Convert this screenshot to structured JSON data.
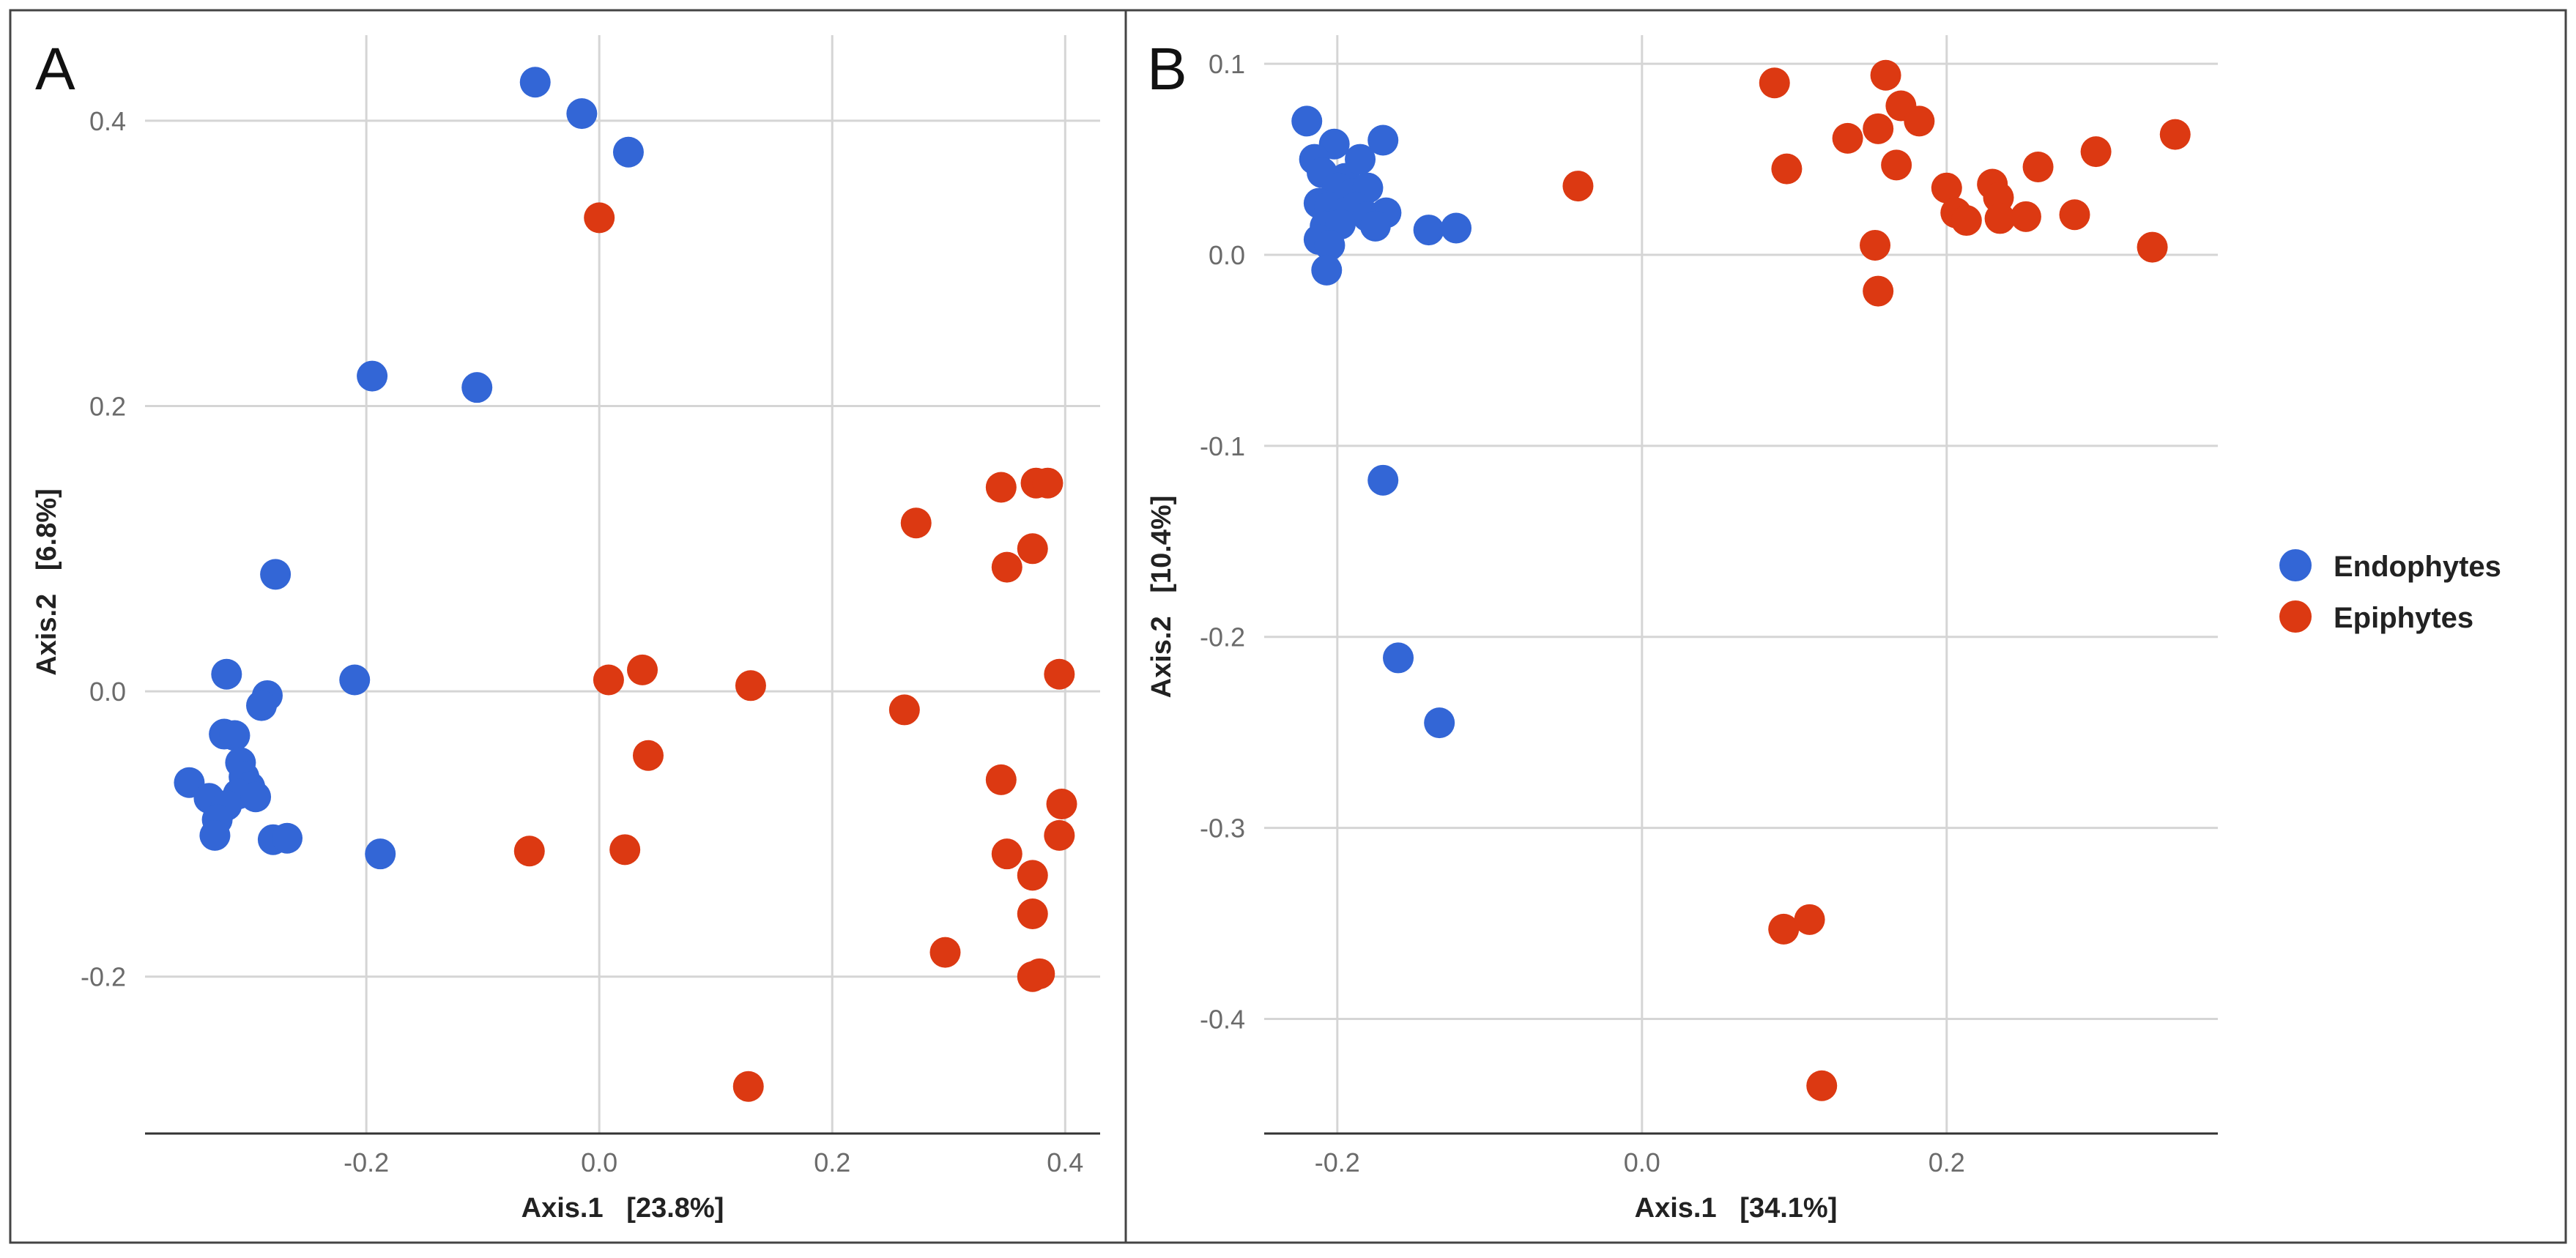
{
  "colors": {
    "endophytes": "#3366d6",
    "epiphytes": "#dc3912",
    "grid": "#d5d5d5",
    "axis_text": "#6b6b6b",
    "frame": "#444444"
  },
  "legend": {
    "items": [
      {
        "label": "Endophytes",
        "color": "#3366d6"
      },
      {
        "label": "Epiphytes",
        "color": "#dc3912"
      }
    ]
  },
  "chart_data": [
    {
      "type": "scatter",
      "panel_label": "A",
      "title": "",
      "xlabel": "Axis.1   [23.8%]",
      "ylabel": "Axis.2   [6.8%]",
      "xlim": [
        -0.39,
        0.43
      ],
      "ylim": [
        -0.31,
        0.46
      ],
      "x_ticks": [
        -0.2,
        0.0,
        0.2,
        0.4
      ],
      "x_tick_labels": [
        "-0.2",
        "0.0",
        "0.2",
        "0.4"
      ],
      "y_ticks": [
        -0.2,
        0.0,
        0.2,
        0.4
      ],
      "y_tick_labels": [
        "-0.2",
        "0.0",
        "0.2",
        "0.4"
      ],
      "series": [
        {
          "name": "Endophytes",
          "points": [
            [
              -0.055,
              0.427
            ],
            [
              -0.015,
              0.405
            ],
            [
              0.025,
              0.378
            ],
            [
              -0.195,
              0.221
            ],
            [
              -0.105,
              0.213
            ],
            [
              -0.278,
              0.082
            ],
            [
              -0.21,
              0.008
            ],
            [
              -0.32,
              0.012
            ],
            [
              -0.285,
              -0.003
            ],
            [
              -0.29,
              -0.01
            ],
            [
              -0.322,
              -0.03
            ],
            [
              -0.313,
              -0.031
            ],
            [
              -0.308,
              -0.05
            ],
            [
              -0.305,
              -0.06
            ],
            [
              -0.3,
              -0.067
            ],
            [
              -0.31,
              -0.072
            ],
            [
              -0.295,
              -0.074
            ],
            [
              -0.352,
              -0.064
            ],
            [
              -0.335,
              -0.075
            ],
            [
              -0.32,
              -0.08
            ],
            [
              -0.328,
              -0.09
            ],
            [
              -0.33,
              -0.101
            ],
            [
              -0.28,
              -0.104
            ],
            [
              -0.268,
              -0.103
            ],
            [
              -0.188,
              -0.114
            ]
          ]
        },
        {
          "name": "Epiphytes",
          "points": [
            [
              0.0,
              0.332
            ],
            [
              0.345,
              0.143
            ],
            [
              0.375,
              0.146
            ],
            [
              0.385,
              0.146
            ],
            [
              0.272,
              0.118
            ],
            [
              0.372,
              0.1
            ],
            [
              0.35,
              0.087
            ],
            [
              0.008,
              0.008
            ],
            [
              0.037,
              0.015
            ],
            [
              0.13,
              0.004
            ],
            [
              0.395,
              0.012
            ],
            [
              0.262,
              -0.013
            ],
            [
              0.042,
              -0.045
            ],
            [
              0.345,
              -0.062
            ],
            [
              0.397,
              -0.079
            ],
            [
              0.395,
              -0.101
            ],
            [
              -0.06,
              -0.112
            ],
            [
              0.022,
              -0.111
            ],
            [
              0.35,
              -0.114
            ],
            [
              0.372,
              -0.129
            ],
            [
              0.372,
              -0.156
            ],
            [
              0.297,
              -0.183
            ],
            [
              0.378,
              -0.198
            ],
            [
              0.372,
              -0.2
            ],
            [
              0.128,
              -0.277
            ]
          ]
        }
      ]
    },
    {
      "type": "scatter",
      "panel_label": "B",
      "title": "",
      "xlabel": "Axis.1   [34.1%]",
      "ylabel": "Axis.2   [10.4%]",
      "xlim": [
        -0.248,
        0.378
      ],
      "ylim": [
        -0.46,
        0.115
      ],
      "x_ticks": [
        -0.2,
        0.0,
        0.2
      ],
      "x_tick_labels": [
        "-0.2",
        "0.0",
        "0.2"
      ],
      "y_ticks": [
        -0.4,
        -0.3,
        -0.2,
        -0.1,
        0.0,
        0.1
      ],
      "y_tick_labels": [
        "-0.4",
        "-0.3",
        "-0.2",
        "-0.1",
        "0.0",
        "0.1"
      ],
      "series": [
        {
          "name": "Endophytes",
          "points": [
            [
              -0.22,
              0.07
            ],
            [
              -0.202,
              0.058
            ],
            [
              -0.17,
              0.06
            ],
            [
              -0.215,
              0.05
            ],
            [
              -0.21,
              0.043
            ],
            [
              -0.195,
              0.04
            ],
            [
              -0.185,
              0.05
            ],
            [
              -0.2,
              0.035
            ],
            [
              -0.19,
              0.032
            ],
            [
              -0.18,
              0.035
            ],
            [
              -0.212,
              0.027
            ],
            [
              -0.205,
              0.025
            ],
            [
              -0.195,
              0.022
            ],
            [
              -0.188,
              0.025
            ],
            [
              -0.18,
              0.02
            ],
            [
              -0.168,
              0.022
            ],
            [
              -0.208,
              0.015
            ],
            [
              -0.198,
              0.016
            ],
            [
              -0.175,
              0.015
            ],
            [
              -0.212,
              0.008
            ],
            [
              -0.205,
              0.005
            ],
            [
              -0.207,
              -0.008
            ],
            [
              -0.14,
              0.013
            ],
            [
              -0.122,
              0.014
            ],
            [
              -0.17,
              -0.118
            ],
            [
              -0.16,
              -0.211
            ],
            [
              -0.133,
              -0.245
            ]
          ]
        },
        {
          "name": "Epiphytes",
          "points": [
            [
              -0.042,
              0.036
            ],
            [
              0.087,
              0.09
            ],
            [
              0.095,
              0.045
            ],
            [
              0.16,
              0.094
            ],
            [
              0.135,
              0.061
            ],
            [
              0.155,
              0.066
            ],
            [
              0.17,
              0.078
            ],
            [
              0.182,
              0.07
            ],
            [
              0.167,
              0.047
            ],
            [
              0.2,
              0.035
            ],
            [
              0.206,
              0.022
            ],
            [
              0.213,
              0.018
            ],
            [
              0.23,
              0.037
            ],
            [
              0.234,
              0.03
            ],
            [
              0.235,
              0.019
            ],
            [
              0.252,
              0.02
            ],
            [
              0.26,
              0.046
            ],
            [
              0.284,
              0.021
            ],
            [
              0.298,
              0.054
            ],
            [
              0.35,
              0.063
            ],
            [
              0.335,
              0.004
            ],
            [
              0.153,
              0.005
            ],
            [
              0.155,
              -0.019
            ],
            [
              0.093,
              -0.353
            ],
            [
              0.11,
              -0.348
            ],
            [
              0.118,
              -0.435
            ]
          ]
        }
      ]
    }
  ]
}
